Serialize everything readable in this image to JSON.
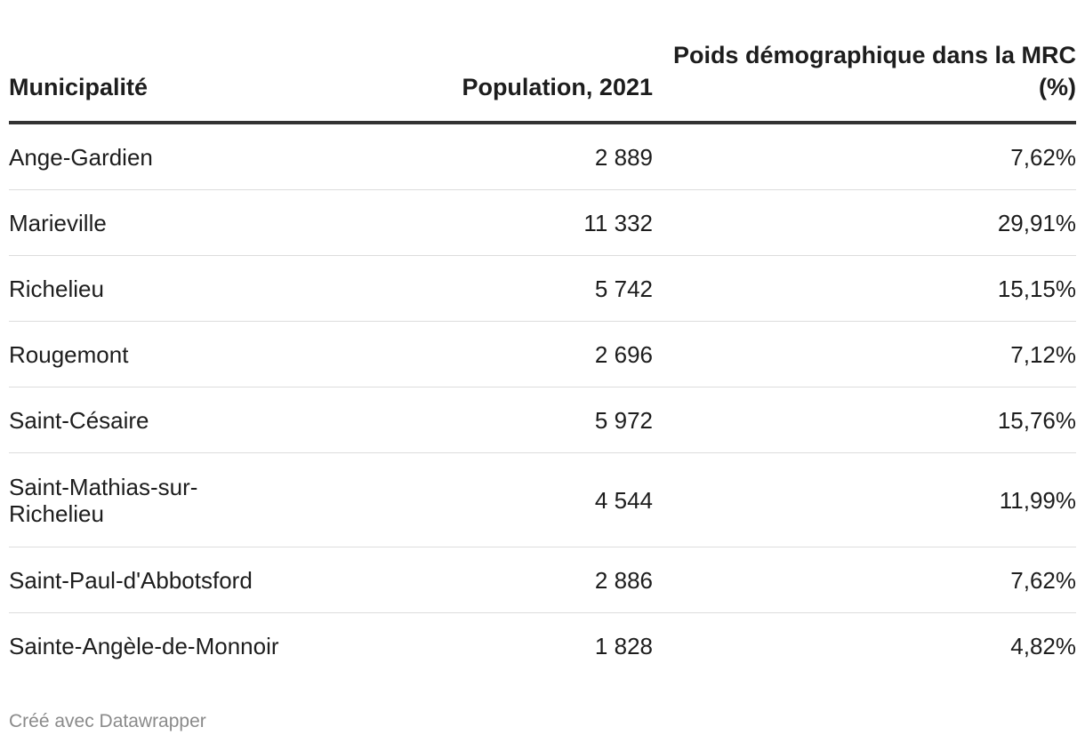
{
  "chart_data": {
    "type": "table",
    "columns": [
      "Municipalité",
      "Population, 2021",
      "Poids démographique dans la MRC (%)"
    ],
    "rows": [
      {
        "municipalite": "Ange-Gardien",
        "population": "2 889",
        "poids": "7,62%"
      },
      {
        "municipalite": "Marieville",
        "population": "11 332",
        "poids": "29,91%"
      },
      {
        "municipalite": "Richelieu",
        "population": "5 742",
        "poids": "15,15%"
      },
      {
        "municipalite": "Rougemont",
        "population": "2 696",
        "poids": "7,12%"
      },
      {
        "municipalite": "Saint-Césaire",
        "population": "5 972",
        "poids": "15,76%"
      },
      {
        "municipalite": "Saint-Mathias-sur-Richelieu",
        "population": "4 544",
        "poids": "11,99%"
      },
      {
        "municipalite": "Saint-Paul-d'Abbotsford",
        "population": "2 886",
        "poids": "7,62%"
      },
      {
        "municipalite": "Sainte-Angèle-de-Monnoir",
        "population": "1 828",
        "poids": "4,82%"
      }
    ]
  },
  "footer": {
    "credit": "Créé avec Datawrapper"
  }
}
